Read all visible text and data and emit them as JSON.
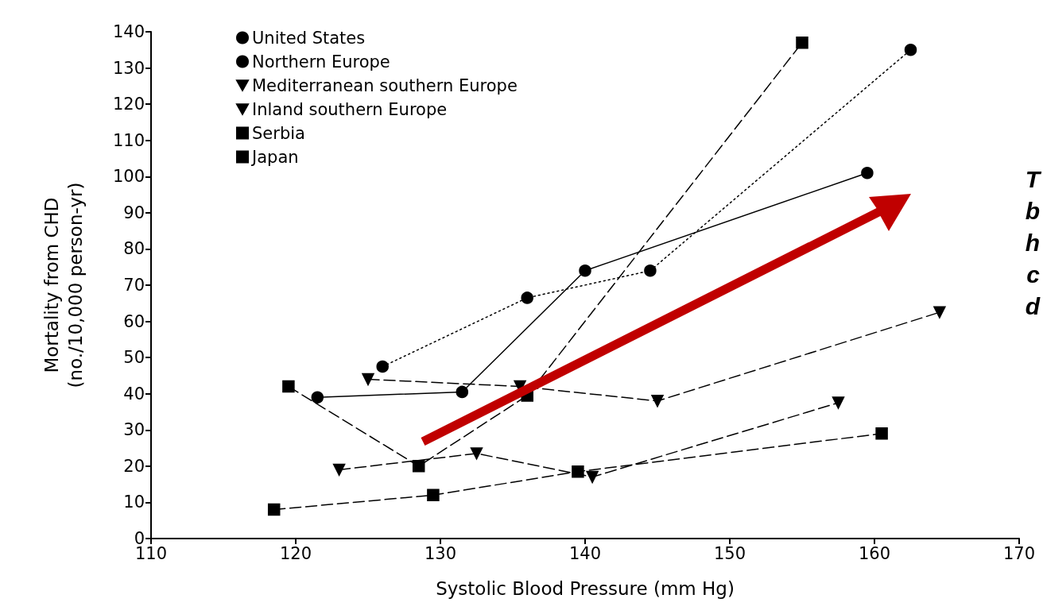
{
  "chart_data": {
    "type": "line",
    "xlabel": "Systolic Blood Pressure (mm Hg)",
    "ylabel": "Mortality from CHD\n(no./10,000 person-yr)",
    "xlim": [
      110,
      170
    ],
    "xticks": [
      110,
      120,
      130,
      140,
      150,
      160,
      170
    ],
    "ylim": [
      0,
      140
    ],
    "yticks": [
      0,
      10,
      20,
      30,
      40,
      50,
      60,
      70,
      80,
      90,
      100,
      110,
      120,
      130,
      140
    ],
    "grid": false,
    "legend": "top left",
    "annotations": [
      "T",
      "b",
      "h",
      "c",
      "d"
    ],
    "series": [
      {
        "name": "United States",
        "color": "#000000",
        "marker": "circle",
        "line_style": "solid",
        "x": [
          121.5,
          131.5,
          140,
          159.5
        ],
        "values": [
          39,
          40.5,
          74,
          101
        ]
      },
      {
        "name": "Northern Europe",
        "color": "#000000",
        "marker": "circle",
        "line_style": "dotted",
        "x": [
          126,
          136,
          144.5,
          162.5
        ],
        "values": [
          47.5,
          66.5,
          74,
          135
        ]
      },
      {
        "name": "Mediterranean southern Europe",
        "color": "#000000",
        "marker": "triangle",
        "line_style": "dashed",
        "x": [
          123,
          132.5,
          140.5,
          157.5
        ],
        "values": [
          19,
          23.5,
          17,
          37.5
        ]
      },
      {
        "name": "Inland southern Europe",
        "color": "#000000",
        "marker": "triangle",
        "line_style": "dashed",
        "x": [
          125,
          135.5,
          145,
          164.5
        ],
        "values": [
          44,
          42,
          38,
          62.5
        ]
      },
      {
        "name": "Serbia",
        "color": "#000000",
        "marker": "square",
        "line_style": "dashed",
        "x": [
          119.5,
          128.5,
          136,
          155
        ],
        "values": [
          42,
          20,
          39.5,
          137
        ]
      },
      {
        "name": "Japan",
        "color": "#000000",
        "marker": "square",
        "line_style": "dashed",
        "x": [
          118.5,
          129.5,
          139.5,
          160.5
        ],
        "values": [
          8,
          12,
          18.5,
          29
        ]
      }
    ]
  }
}
